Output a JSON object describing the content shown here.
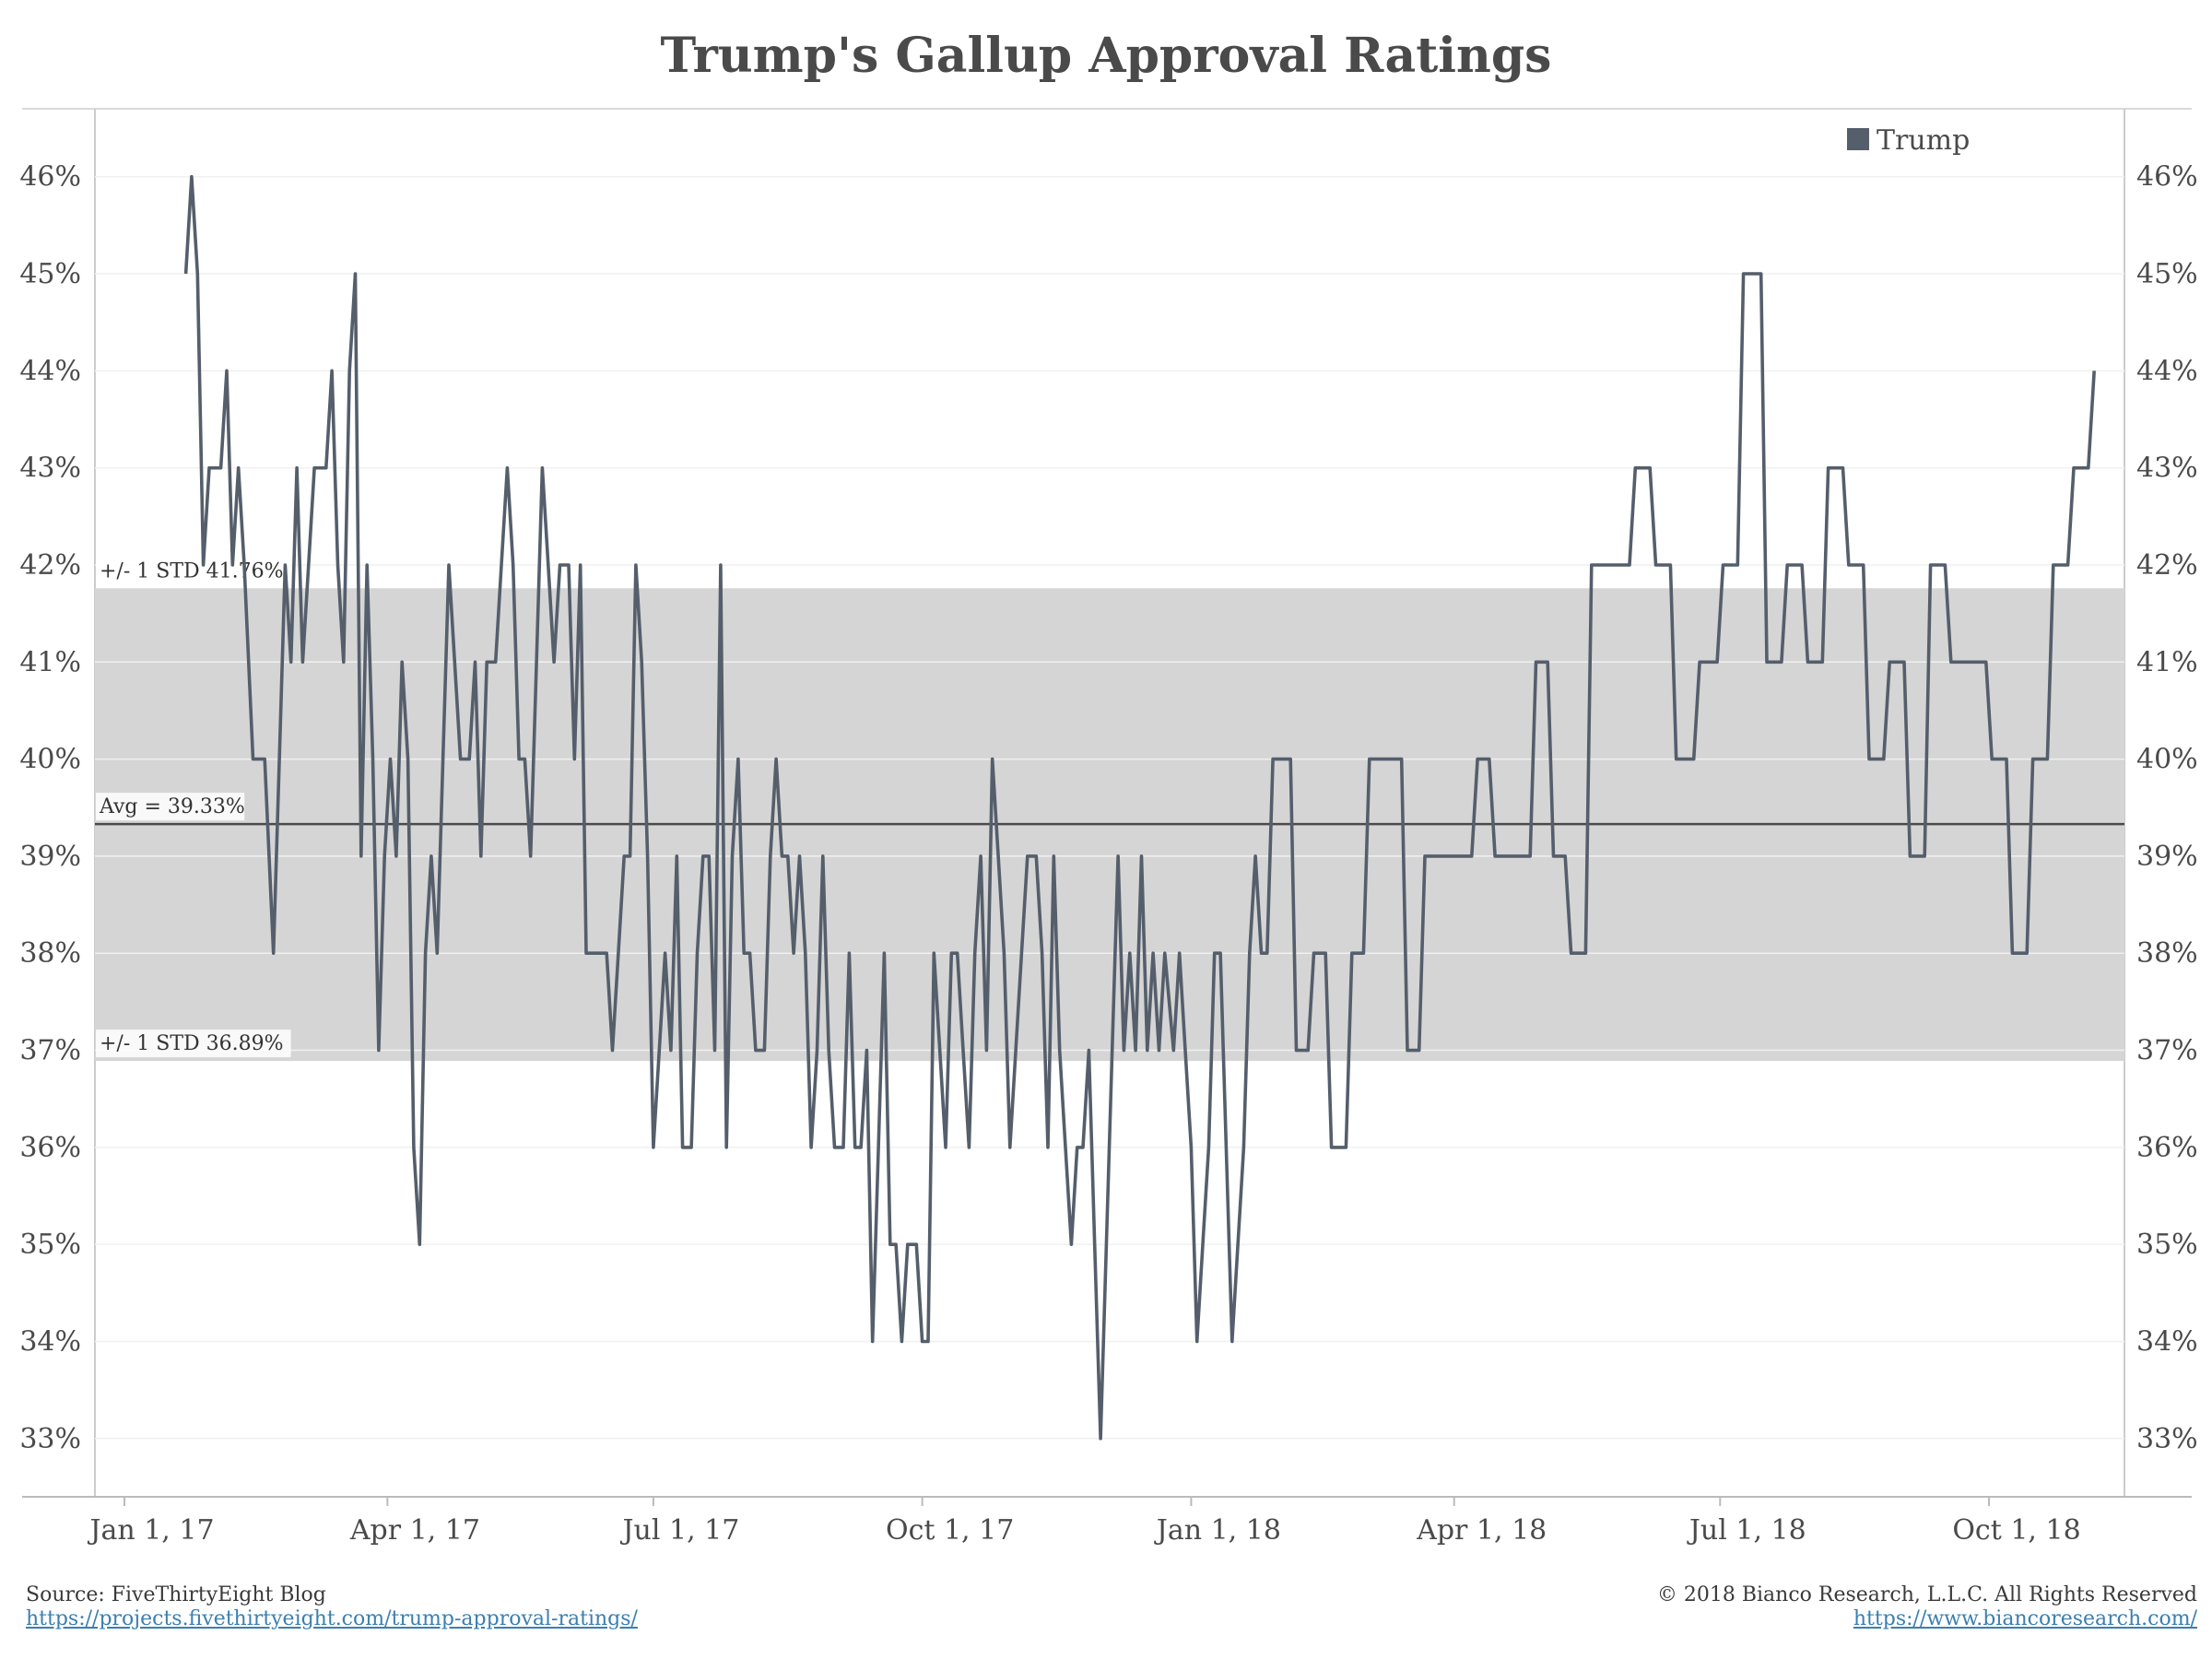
{
  "chart_data": {
    "type": "line",
    "title": "Trump's Gallup Approval Ratings",
    "xlabel": "",
    "ylabel": "",
    "ylim": [
      32.4,
      46.7
    ],
    "y_ticks": [
      46,
      45,
      44,
      43,
      42,
      41,
      40,
      39,
      38,
      37,
      36,
      35,
      34,
      33
    ],
    "y_tick_labels": [
      "46%",
      "45%",
      "44%",
      "43%",
      "42%",
      "41%",
      "40%",
      "39%",
      "38%",
      "37%",
      "36%",
      "35%",
      "34%",
      "33%"
    ],
    "x_ticks": [
      "Jan 1, 17",
      "Apr 1, 17",
      "Jul 1, 17",
      "Oct 1, 17",
      "Jan 1, 18",
      "Apr 1, 18",
      "Jul 1, 18",
      "Oct 1, 18"
    ],
    "x_range_days_note": "",
    "legend": {
      "placement": "top-right",
      "entries": [
        "Trump"
      ]
    },
    "grid": true,
    "colors": {
      "series": "#555e6b",
      "band": "#d5d5d5",
      "avg_line": "#4a4a4a"
    },
    "reference": {
      "avg_label": "Avg = 39.33%",
      "avg": 39.33,
      "upper_label": "+/- 1 STD 41.76%",
      "upper": 41.76,
      "lower_label": "+/- 1 STD 36.89%",
      "lower": 36.89
    },
    "series": [
      {
        "name": "Trump",
        "points": [
          [
            "2017-01-22",
            45
          ],
          [
            "2017-01-24",
            46
          ],
          [
            "2017-01-26",
            45
          ],
          [
            "2017-01-28",
            42
          ],
          [
            "2017-01-30",
            43
          ],
          [
            "2017-02-03",
            43
          ],
          [
            "2017-02-05",
            44
          ],
          [
            "2017-02-07",
            42
          ],
          [
            "2017-02-09",
            43
          ],
          [
            "2017-02-11",
            42
          ],
          [
            "2017-02-14",
            40
          ],
          [
            "2017-02-18",
            40
          ],
          [
            "2017-02-21",
            38
          ],
          [
            "2017-02-23",
            40
          ],
          [
            "2017-02-25",
            42
          ],
          [
            "2017-02-27",
            41
          ],
          [
            "2017-03-01",
            43
          ],
          [
            "2017-03-03",
            41
          ],
          [
            "2017-03-05",
            42
          ],
          [
            "2017-03-07",
            43
          ],
          [
            "2017-03-11",
            43
          ],
          [
            "2017-03-13",
            44
          ],
          [
            "2017-03-15",
            42
          ],
          [
            "2017-03-17",
            41
          ],
          [
            "2017-03-19",
            44
          ],
          [
            "2017-03-21",
            45
          ],
          [
            "2017-03-23",
            39
          ],
          [
            "2017-03-25",
            42
          ],
          [
            "2017-03-27",
            40
          ],
          [
            "2017-03-29",
            37
          ],
          [
            "2017-03-31",
            39
          ],
          [
            "2017-04-02",
            40
          ],
          [
            "2017-04-04",
            39
          ],
          [
            "2017-04-06",
            41
          ],
          [
            "2017-04-08",
            40
          ],
          [
            "2017-04-10",
            36
          ],
          [
            "2017-04-12",
            35
          ],
          [
            "2017-04-14",
            38
          ],
          [
            "2017-04-16",
            39
          ],
          [
            "2017-04-18",
            38
          ],
          [
            "2017-04-20",
            40
          ],
          [
            "2017-04-22",
            42
          ],
          [
            "2017-04-24",
            41
          ],
          [
            "2017-04-26",
            40
          ],
          [
            "2017-04-29",
            40
          ],
          [
            "2017-05-01",
            41
          ],
          [
            "2017-05-03",
            39
          ],
          [
            "2017-05-05",
            41
          ],
          [
            "2017-05-08",
            41
          ],
          [
            "2017-05-10",
            42
          ],
          [
            "2017-05-12",
            43
          ],
          [
            "2017-05-14",
            42
          ],
          [
            "2017-05-16",
            40
          ],
          [
            "2017-05-18",
            40
          ],
          [
            "2017-05-20",
            39
          ],
          [
            "2017-05-22",
            41
          ],
          [
            "2017-05-24",
            43
          ],
          [
            "2017-05-26",
            42
          ],
          [
            "2017-05-28",
            41
          ],
          [
            "2017-05-30",
            42
          ],
          [
            "2017-06-02",
            42
          ],
          [
            "2017-06-04",
            40
          ],
          [
            "2017-06-06",
            42
          ],
          [
            "2017-06-08",
            38
          ],
          [
            "2017-06-10",
            38
          ],
          [
            "2017-06-12",
            38
          ],
          [
            "2017-06-15",
            38
          ],
          [
            "2017-06-17",
            37
          ],
          [
            "2017-06-19",
            38
          ],
          [
            "2017-06-21",
            39
          ],
          [
            "2017-06-23",
            39
          ],
          [
            "2017-06-25",
            42
          ],
          [
            "2017-06-27",
            41
          ],
          [
            "2017-06-29",
            39
          ],
          [
            "2017-07-01",
            36
          ],
          [
            "2017-07-03",
            37
          ],
          [
            "2017-07-05",
            38
          ],
          [
            "2017-07-07",
            37
          ],
          [
            "2017-07-09",
            39
          ],
          [
            "2017-07-11",
            36
          ],
          [
            "2017-07-14",
            36
          ],
          [
            "2017-07-16",
            38
          ],
          [
            "2017-07-18",
            39
          ],
          [
            "2017-07-20",
            39
          ],
          [
            "2017-07-22",
            37
          ],
          [
            "2017-07-24",
            42
          ],
          [
            "2017-07-26",
            36
          ],
          [
            "2017-07-28",
            39
          ],
          [
            "2017-07-30",
            40
          ],
          [
            "2017-08-01",
            38
          ],
          [
            "2017-08-03",
            38
          ],
          [
            "2017-08-05",
            37
          ],
          [
            "2017-08-08",
            37
          ],
          [
            "2017-08-10",
            39
          ],
          [
            "2017-08-12",
            40
          ],
          [
            "2017-08-14",
            39
          ],
          [
            "2017-08-16",
            39
          ],
          [
            "2017-08-18",
            38
          ],
          [
            "2017-08-20",
            39
          ],
          [
            "2017-08-22",
            38
          ],
          [
            "2017-08-24",
            36
          ],
          [
            "2017-08-26",
            37
          ],
          [
            "2017-08-28",
            39
          ],
          [
            "2017-08-30",
            37
          ],
          [
            "2017-09-01",
            36
          ],
          [
            "2017-09-04",
            36
          ],
          [
            "2017-09-06",
            38
          ],
          [
            "2017-09-08",
            36
          ],
          [
            "2017-09-10",
            36
          ],
          [
            "2017-09-12",
            37
          ],
          [
            "2017-09-14",
            34
          ],
          [
            "2017-09-16",
            36
          ],
          [
            "2017-09-18",
            38
          ],
          [
            "2017-09-20",
            35
          ],
          [
            "2017-09-22",
            35
          ],
          [
            "2017-09-24",
            34
          ],
          [
            "2017-09-26",
            35
          ],
          [
            "2017-09-29",
            35
          ],
          [
            "2017-10-01",
            34
          ],
          [
            "2017-10-03",
            34
          ],
          [
            "2017-10-05",
            38
          ],
          [
            "2017-10-07",
            37
          ],
          [
            "2017-10-09",
            36
          ],
          [
            "2017-10-11",
            38
          ],
          [
            "2017-10-13",
            38
          ],
          [
            "2017-10-15",
            37
          ],
          [
            "2017-10-17",
            36
          ],
          [
            "2017-10-19",
            38
          ],
          [
            "2017-10-21",
            39
          ],
          [
            "2017-10-23",
            37
          ],
          [
            "2017-10-25",
            40
          ],
          [
            "2017-10-27",
            39
          ],
          [
            "2017-10-29",
            38
          ],
          [
            "2017-10-31",
            36
          ],
          [
            "2017-11-02",
            37
          ],
          [
            "2017-11-04",
            38
          ],
          [
            "2017-11-06",
            39
          ],
          [
            "2017-11-09",
            39
          ],
          [
            "2017-11-11",
            38
          ],
          [
            "2017-11-13",
            36
          ],
          [
            "2017-11-15",
            39
          ],
          [
            "2017-11-17",
            37
          ],
          [
            "2017-11-19",
            36
          ],
          [
            "2017-11-21",
            35
          ],
          [
            "2017-11-23",
            36
          ],
          [
            "2017-11-25",
            36
          ],
          [
            "2017-11-27",
            37
          ],
          [
            "2017-11-29",
            35
          ],
          [
            "2017-12-01",
            33
          ],
          [
            "2017-12-03",
            35
          ],
          [
            "2017-12-05",
            37
          ],
          [
            "2017-12-07",
            39
          ],
          [
            "2017-12-09",
            37
          ],
          [
            "2017-12-11",
            38
          ],
          [
            "2017-12-13",
            37
          ],
          [
            "2017-12-15",
            39
          ],
          [
            "2017-12-17",
            37
          ],
          [
            "2017-12-19",
            38
          ],
          [
            "2017-12-21",
            37
          ],
          [
            "2017-12-23",
            38
          ],
          [
            "2017-12-26",
            37
          ],
          [
            "2017-12-28",
            38
          ],
          [
            "2017-12-30",
            37
          ],
          [
            "2018-01-01",
            36
          ],
          [
            "2018-01-03",
            34
          ],
          [
            "2018-01-05",
            35
          ],
          [
            "2018-01-07",
            36
          ],
          [
            "2018-01-09",
            38
          ],
          [
            "2018-01-11",
            38
          ],
          [
            "2018-01-13",
            36
          ],
          [
            "2018-01-15",
            34
          ],
          [
            "2018-01-17",
            35
          ],
          [
            "2018-01-19",
            36
          ],
          [
            "2018-01-21",
            38
          ],
          [
            "2018-01-23",
            39
          ],
          [
            "2018-01-25",
            38
          ],
          [
            "2018-01-27",
            38
          ],
          [
            "2018-01-29",
            40
          ],
          [
            "2018-02-04",
            40
          ],
          [
            "2018-02-06",
            37
          ],
          [
            "2018-02-10",
            37
          ],
          [
            "2018-02-12",
            38
          ],
          [
            "2018-02-16",
            38
          ],
          [
            "2018-02-18",
            36
          ],
          [
            "2018-02-23",
            36
          ],
          [
            "2018-02-25",
            38
          ],
          [
            "2018-03-01",
            38
          ],
          [
            "2018-03-03",
            40
          ],
          [
            "2018-03-14",
            40
          ],
          [
            "2018-03-16",
            37
          ],
          [
            "2018-03-20",
            37
          ],
          [
            "2018-03-22",
            39
          ],
          [
            "2018-04-07",
            39
          ],
          [
            "2018-04-09",
            40
          ],
          [
            "2018-04-13",
            40
          ],
          [
            "2018-04-15",
            39
          ],
          [
            "2018-04-27",
            39
          ],
          [
            "2018-04-29",
            41
          ],
          [
            "2018-05-03",
            41
          ],
          [
            "2018-05-05",
            39
          ],
          [
            "2018-05-09",
            39
          ],
          [
            "2018-05-11",
            38
          ],
          [
            "2018-05-16",
            38
          ],
          [
            "2018-05-18",
            42
          ],
          [
            "2018-05-31",
            42
          ],
          [
            "2018-06-02",
            43
          ],
          [
            "2018-06-07",
            43
          ],
          [
            "2018-06-09",
            42
          ],
          [
            "2018-06-14",
            42
          ],
          [
            "2018-06-16",
            40
          ],
          [
            "2018-06-22",
            40
          ],
          [
            "2018-06-24",
            41
          ],
          [
            "2018-06-30",
            41
          ],
          [
            "2018-07-02",
            42
          ],
          [
            "2018-07-07",
            42
          ],
          [
            "2018-07-09",
            45
          ],
          [
            "2018-07-15",
            45
          ],
          [
            "2018-07-17",
            41
          ],
          [
            "2018-07-22",
            41
          ],
          [
            "2018-07-24",
            42
          ],
          [
            "2018-07-29",
            42
          ],
          [
            "2018-07-31",
            41
          ],
          [
            "2018-08-05",
            41
          ],
          [
            "2018-08-07",
            43
          ],
          [
            "2018-08-12",
            43
          ],
          [
            "2018-08-14",
            42
          ],
          [
            "2018-08-19",
            42
          ],
          [
            "2018-08-21",
            40
          ],
          [
            "2018-08-26",
            40
          ],
          [
            "2018-08-28",
            41
          ],
          [
            "2018-09-02",
            41
          ],
          [
            "2018-09-04",
            39
          ],
          [
            "2018-09-09",
            39
          ],
          [
            "2018-09-11",
            42
          ],
          [
            "2018-09-16",
            42
          ],
          [
            "2018-09-18",
            41
          ],
          [
            "2018-09-30",
            41
          ],
          [
            "2018-10-02",
            40
          ],
          [
            "2018-10-07",
            40
          ],
          [
            "2018-10-09",
            38
          ],
          [
            "2018-10-14",
            38
          ],
          [
            "2018-10-16",
            40
          ],
          [
            "2018-10-21",
            40
          ],
          [
            "2018-10-23",
            42
          ],
          [
            "2018-10-28",
            42
          ],
          [
            "2018-10-30",
            43
          ],
          [
            "2018-11-04",
            43
          ],
          [
            "2018-11-06",
            44
          ]
        ]
      }
    ]
  },
  "footer": {
    "source": "Source: FiveThirtyEight Blog",
    "source_url": "https://projects.fivethirtyeight.com/trump-approval-ratings/",
    "copyright": "© 2018 Bianco Research, L.L.C. All Rights Reserved",
    "site_url": "https://www.biancoresearch.com/"
  }
}
